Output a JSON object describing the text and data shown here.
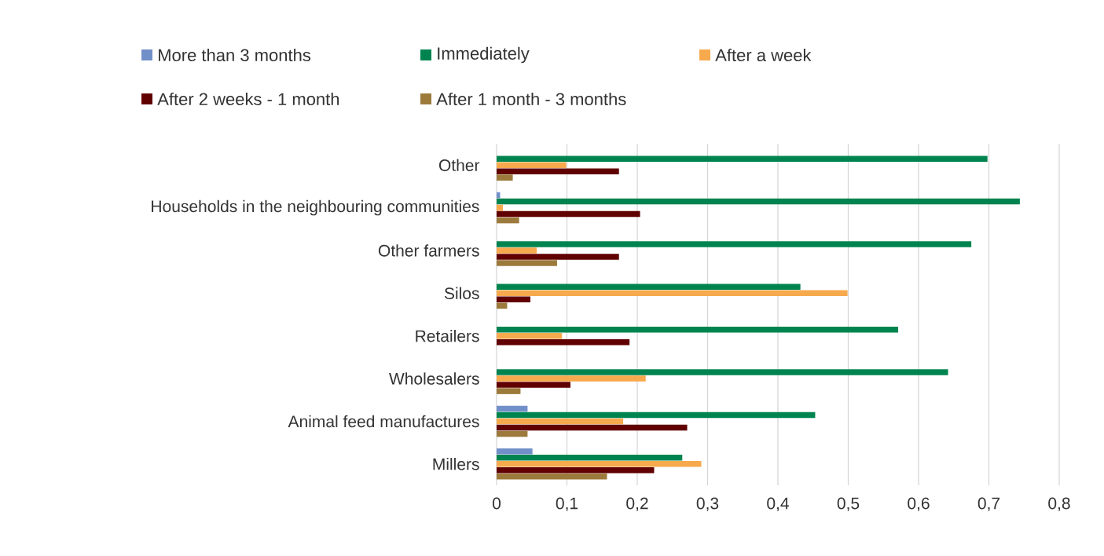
{
  "chart_data": {
    "type": "bar",
    "orientation": "horizontal",
    "categories": [
      "Other",
      "Households in the neighbouring communities",
      "Other farmers",
      "Silos",
      "Retailers",
      "Wholesalers",
      "Animal feed manufactures",
      "Millers"
    ],
    "series": [
      {
        "name": "More than 3 months",
        "color": "#7190c9",
        "values": [
          null,
          0.005,
          null,
          null,
          null,
          null,
          0.044,
          0.051
        ]
      },
      {
        "name": "Immediately",
        "color": "#00844f",
        "values": [
          0.698,
          0.744,
          0.675,
          0.432,
          0.571,
          0.642,
          0.453,
          0.264
        ]
      },
      {
        "name": "After a week",
        "color": "#f7a94d",
        "values": [
          0.099,
          0.009,
          0.057,
          0.499,
          0.093,
          0.212,
          0.18,
          0.291
        ]
      },
      {
        "name": "After 2 weeks - 1 month",
        "color": "#600000",
        "values": [
          0.174,
          0.204,
          0.174,
          0.048,
          0.189,
          0.105,
          0.271,
          0.224
        ]
      },
      {
        "name": "After 1 month - 3 months",
        "color": "#9c7a3c",
        "values": [
          0.023,
          0.032,
          0.086,
          0.015,
          null,
          0.034,
          0.044,
          0.157
        ]
      }
    ],
    "xlim": [
      0,
      0.8
    ],
    "xticks": [
      0,
      {
        "value": 0.1,
        "label": "0,1"
      },
      {
        "value": 0.2,
        "label": "0,2"
      },
      {
        "value": 0.3,
        "label": "0,3"
      },
      {
        "value": 0.4,
        "label": "0,4"
      },
      {
        "value": 0.5,
        "label": "0,5"
      },
      {
        "value": 0.6,
        "label": "0,6"
      },
      {
        "value": 0.7,
        "label": "0,7"
      },
      {
        "value": 0.8,
        "label": "0,8"
      }
    ],
    "grid": "x",
    "legend": "top"
  }
}
